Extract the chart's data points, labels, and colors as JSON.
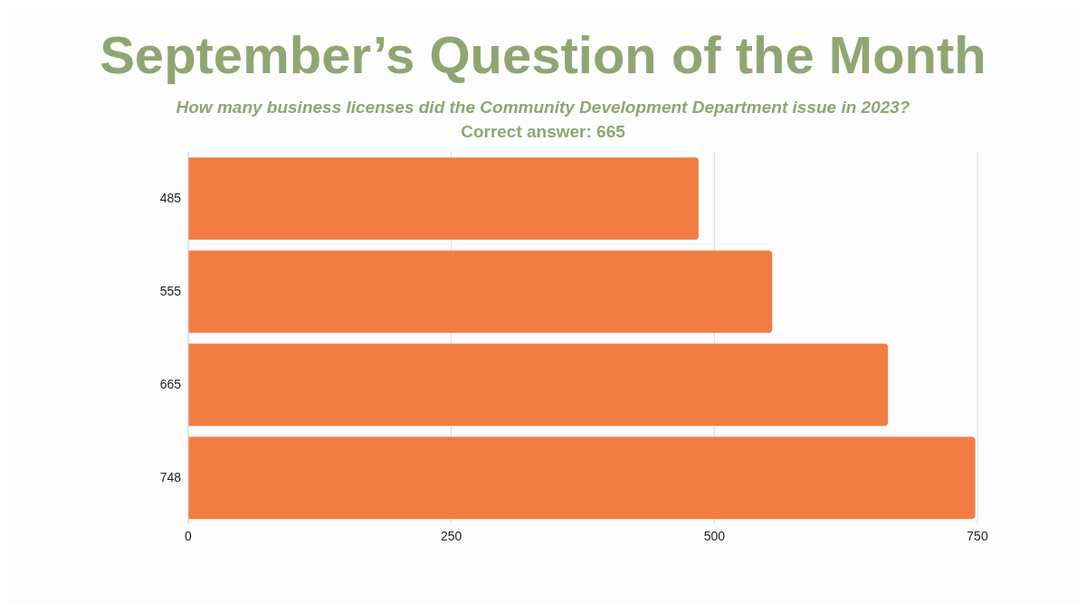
{
  "chart_data": {
    "type": "bar",
    "orientation": "horizontal",
    "title": "September’s Question of the Month",
    "subtitle": "How many business licenses did the Community Development Department issue in 2023?",
    "annotations": [
      "Correct answer: 665"
    ],
    "categories": [
      "485",
      "555",
      "665",
      "748"
    ],
    "values": [
      485,
      555,
      665,
      748
    ],
    "color": "#f27d42",
    "xlim": [
      0,
      750
    ],
    "xticks": [
      0,
      250,
      500,
      750
    ],
    "grid": "x"
  }
}
